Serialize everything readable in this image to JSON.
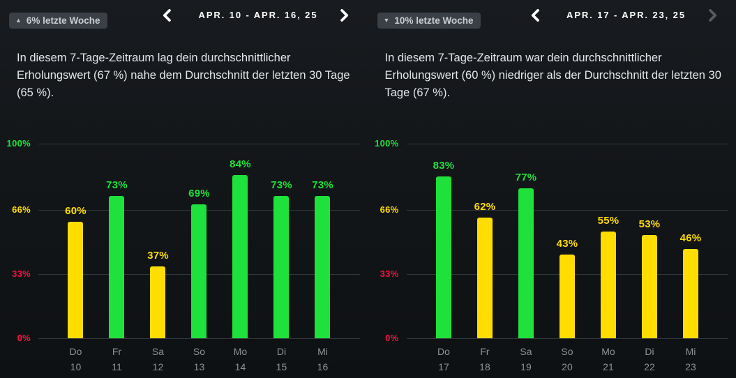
{
  "colors": {
    "green": "#1ee13b",
    "yellow": "#ffdd00",
    "red": "#f01540",
    "label_gray": "#8e9397"
  },
  "panels": [
    {
      "badge": {
        "icon": "▲",
        "trend": "up",
        "label": "6% letzte Woche"
      },
      "nav": {
        "date_range": "APR. 10 - APR. 16, 25",
        "prev_enabled": true,
        "next_enabled": true
      },
      "summary": "In diesem 7-Tage-Zeitraum lag dein durchschnittlicher Erholungswert (67 %) nahe dem Durchschnitt der letzten 30 Tage (65 %)."
    },
    {
      "badge": {
        "icon": "▼",
        "trend": "down",
        "label": "10% letzte Woche"
      },
      "nav": {
        "date_range": "APR. 17 - APR. 23, 25",
        "prev_enabled": true,
        "next_enabled": false
      },
      "summary": "In diesem 7-Tage-Zeitraum war dein durchschnittlicher Erholungswert (60 %) niedriger als der Durchschnitt der letzten 30 Tage (67 %)."
    }
  ],
  "chart_data": [
    {
      "type": "bar",
      "title": "",
      "xlabel": "",
      "ylabel": "",
      "ylim": [
        0,
        100
      ],
      "grid": true,
      "categories": [
        {
          "day": "Do",
          "date": "10"
        },
        {
          "day": "Fr",
          "date": "11"
        },
        {
          "day": "Sa",
          "date": "12"
        },
        {
          "day": "So",
          "date": "13"
        },
        {
          "day": "Mo",
          "date": "14"
        },
        {
          "day": "Di",
          "date": "15"
        },
        {
          "day": "Mi",
          "date": "16"
        }
      ],
      "values": [
        60,
        73,
        37,
        69,
        84,
        73,
        73
      ],
      "value_labels": [
        "60%",
        "73%",
        "37%",
        "69%",
        "84%",
        "73%",
        "73%"
      ],
      "bar_colors": [
        "yellow",
        "green",
        "yellow",
        "green",
        "green",
        "green",
        "green"
      ],
      "yticks": [
        {
          "label": "100%",
          "value": 100,
          "color": "green"
        },
        {
          "label": "66%",
          "value": 66,
          "color": "yellow"
        },
        {
          "label": "33%",
          "value": 33,
          "color": "red"
        },
        {
          "label": "0%",
          "value": 0,
          "color": "red"
        }
      ]
    },
    {
      "type": "bar",
      "title": "",
      "xlabel": "",
      "ylabel": "",
      "ylim": [
        0,
        100
      ],
      "grid": true,
      "categories": [
        {
          "day": "Do",
          "date": "17"
        },
        {
          "day": "Fr",
          "date": "18"
        },
        {
          "day": "Sa",
          "date": "19"
        },
        {
          "day": "So",
          "date": "20"
        },
        {
          "day": "Mo",
          "date": "21"
        },
        {
          "day": "Di",
          "date": "22"
        },
        {
          "day": "Mi",
          "date": "23"
        }
      ],
      "values": [
        83,
        62,
        77,
        43,
        55,
        53,
        46
      ],
      "value_labels": [
        "83%",
        "62%",
        "77%",
        "43%",
        "55%",
        "53%",
        "46%"
      ],
      "bar_colors": [
        "green",
        "yellow",
        "green",
        "yellow",
        "yellow",
        "yellow",
        "yellow"
      ],
      "yticks": [
        {
          "label": "100%",
          "value": 100,
          "color": "green"
        },
        {
          "label": "66%",
          "value": 66,
          "color": "yellow"
        },
        {
          "label": "33%",
          "value": 33,
          "color": "red"
        },
        {
          "label": "0%",
          "value": 0,
          "color": "red"
        }
      ]
    }
  ]
}
